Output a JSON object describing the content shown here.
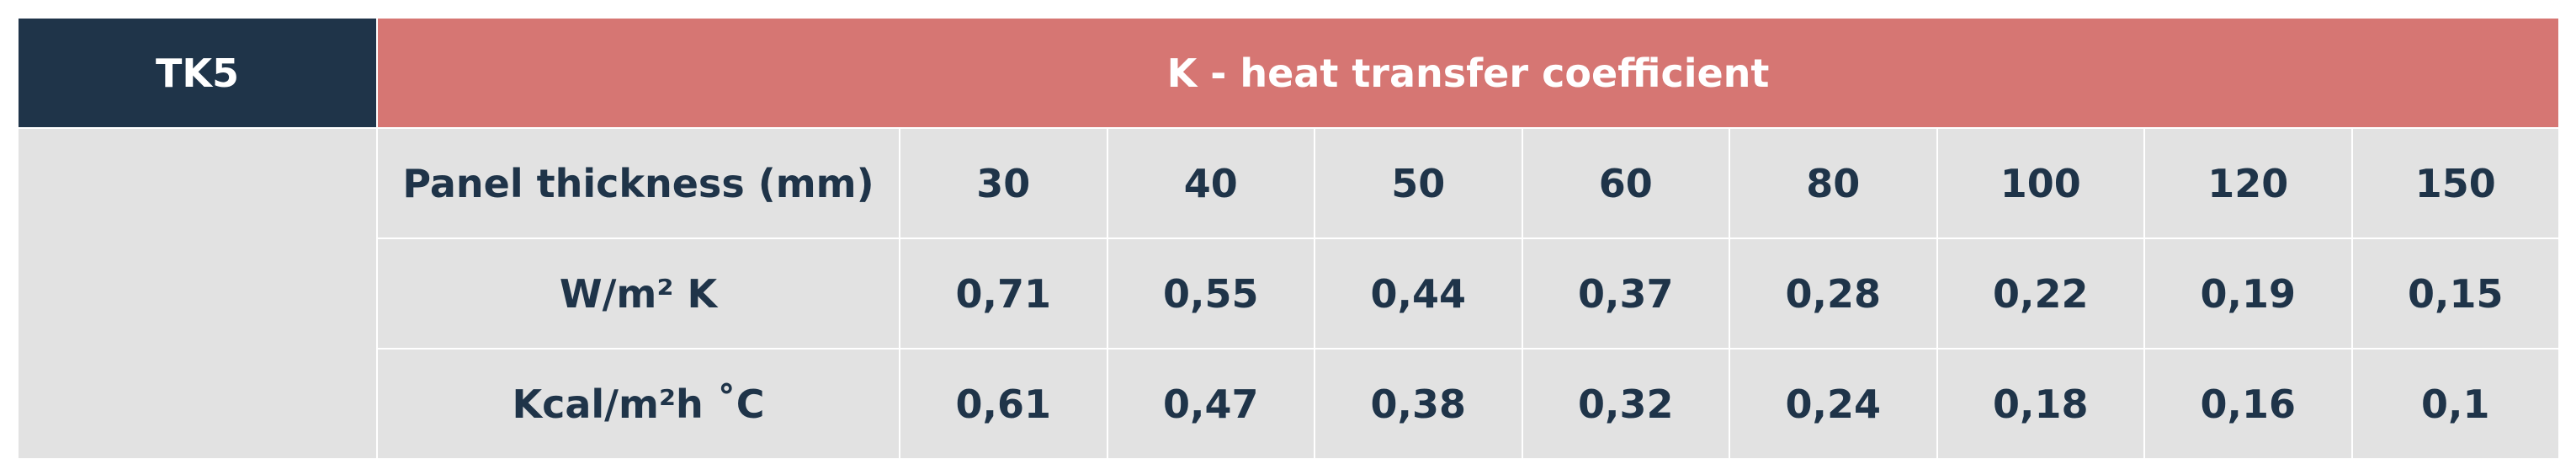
{
  "header": {
    "label": "TK5",
    "title": "K - heat transfer coefficient"
  },
  "table": {
    "rows": [
      [
        "Panel thickness (mm)",
        "30",
        "40",
        "50",
        "60",
        "80",
        "100",
        "120",
        "150"
      ],
      [
        "W/m² K",
        "0,71",
        "0,55",
        "0,44",
        "0,37",
        "0,28",
        "0,22",
        "0,19",
        "0,15"
      ],
      [
        "Kcal/m²h ˚C",
        "0,61",
        "0,47",
        "0,38",
        "0,32",
        "0,24",
        "0,18",
        "0,16",
        "0,1"
      ]
    ]
  }
}
